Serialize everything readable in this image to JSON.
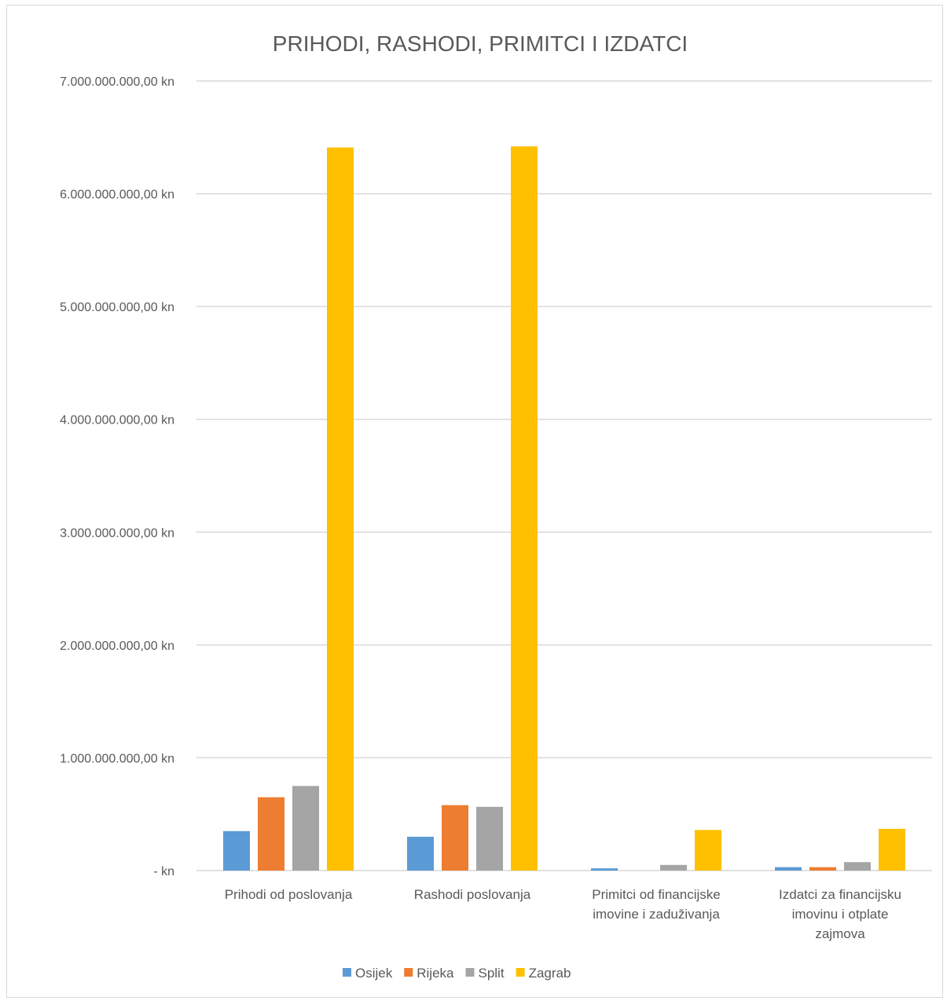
{
  "chart_data": {
    "type": "bar",
    "title": "PRIHODI, RASHODI, PRIMITCI I IZDATCI",
    "xlabel": "",
    "ylabel": "",
    "ylim": [
      0,
      7000000000
    ],
    "yticks": [
      0,
      1000000000,
      2000000000,
      3000000000,
      4000000000,
      5000000000,
      6000000000,
      7000000000
    ],
    "ytick_labels": [
      "-   kn",
      "1.000.000.000,00 kn",
      "2.000.000.000,00 kn",
      "3.000.000.000,00 kn",
      "4.000.000.000,00 kn",
      "5.000.000.000,00 kn",
      "6.000.000.000,00 kn",
      "7.000.000.000,00 kn"
    ],
    "categories": [
      [
        "Prihodi od poslovanja"
      ],
      [
        "Rashodi poslovanja"
      ],
      [
        "Primitci od financijske",
        "imovine i zaduživanja"
      ],
      [
        "Izdatci za financijsku",
        "imovinu i otplate",
        "zajmova"
      ]
    ],
    "series": [
      {
        "name": "Osijek",
        "color": "#5B9BD5",
        "values": [
          350000000,
          300000000,
          20000000,
          30000000
        ]
      },
      {
        "name": "Rijeka",
        "color": "#ED7D31",
        "values": [
          650000000,
          580000000,
          0,
          30000000
        ]
      },
      {
        "name": "Split",
        "color": "#A5A5A5",
        "values": [
          750000000,
          565000000,
          50000000,
          75000000
        ]
      },
      {
        "name": "Zagrab",
        "color": "#FFC000",
        "values": [
          6410000000,
          6420000000,
          360000000,
          370000000
        ]
      }
    ],
    "grid": true,
    "gridline_color": "#d9d9d9",
    "legend_position": "bottom"
  }
}
